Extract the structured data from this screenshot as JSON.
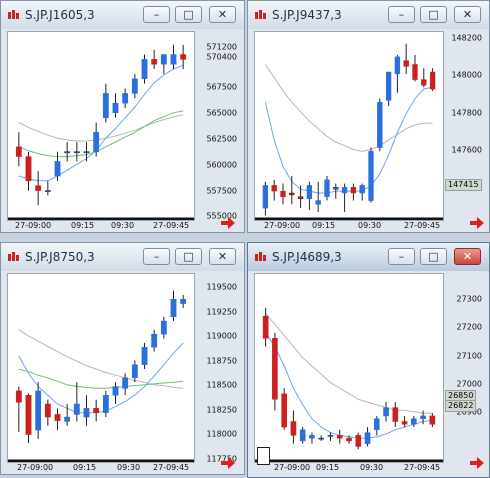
{
  "colors": {
    "up": "#2a6fdd",
    "down": "#cc1f1f",
    "ma_fast": "#6aa8e8",
    "ma_slow": "#6fbf6f",
    "ma_gray": "#b7b7b7",
    "arrow": "#e02020"
  },
  "windows": [
    {
      "title": "S.JP.J1605,3",
      "x_labels": [
        "27-09:00",
        "09:15",
        "09:30",
        "27-09:45"
      ],
      "y_labels": [
        "571200",
        "570400",
        "567500",
        "565000",
        "562500",
        "560000",
        "557500",
        "555000"
      ],
      "price_tag": "",
      "buttons": [
        "–",
        "□",
        "✕"
      ],
      "chart_data": {
        "type": "candlestick",
        "ylim": [
          554500,
          572200
        ],
        "ohlc": [
          [
            561000,
            562500,
            559000,
            560000
          ],
          [
            560000,
            560500,
            556500,
            557500
          ],
          [
            557000,
            558500,
            555000,
            556500
          ],
          [
            556500,
            557500,
            556000,
            556500
          ],
          [
            558000,
            560500,
            557500,
            559500
          ],
          [
            560500,
            561500,
            559500,
            560500
          ],
          [
            560500,
            561500,
            559500,
            560500
          ],
          [
            560500,
            561500,
            559500,
            560500
          ],
          [
            560500,
            563500,
            560000,
            562500
          ],
          [
            564000,
            567500,
            563500,
            566500
          ],
          [
            564500,
            566500,
            564000,
            565500
          ],
          [
            565500,
            567000,
            565000,
            566500
          ],
          [
            566500,
            568500,
            566000,
            568000
          ],
          [
            568000,
            570500,
            567500,
            570000
          ],
          [
            570000,
            571000,
            569000,
            569500
          ],
          [
            569500,
            570500,
            568500,
            570500
          ],
          [
            569500,
            571500,
            569000,
            570500
          ],
          [
            570500,
            571500,
            569000,
            570000
          ]
        ],
        "ma_fast": [
          558000,
          557700,
          557500,
          557500,
          558000,
          558600,
          559200,
          559800,
          560600,
          561900,
          562900,
          564000,
          565100,
          566400,
          567600,
          568400,
          569000,
          569400
        ],
        "ma_slow": [
          561000,
          560600,
          560300,
          560100,
          560000,
          560000,
          560100,
          560200,
          560500,
          561000,
          561500,
          562000,
          562500,
          563100,
          563700,
          564100,
          564500,
          564700
        ],
        "ma_gray": [
          563500,
          563000,
          562600,
          562200,
          561900,
          561700,
          561600,
          561600,
          561700,
          561900,
          562100,
          562400,
          562700,
          563100,
          563500,
          563800,
          564100,
          564300
        ]
      }
    },
    {
      "title": "S.JP.J9437,3",
      "x_labels": [
        "27-09:00",
        "09:15",
        "09:30",
        "27-09:45"
      ],
      "y_labels": [
        "148200",
        "148000",
        "147800",
        "147600",
        "147415"
      ],
      "price_tag": "147415",
      "buttons": [
        "–",
        "□",
        "✕"
      ],
      "chart_data": {
        "type": "candlestick",
        "ylim": [
          147330,
          148240
        ],
        "ohlc": [
          [
            147340,
            147480,
            147300,
            147460
          ],
          [
            147460,
            147490,
            147380,
            147430
          ],
          [
            147430,
            147470,
            147360,
            147400
          ],
          [
            147420,
            147510,
            147360,
            147410
          ],
          [
            147400,
            147460,
            147340,
            147390
          ],
          [
            147390,
            147480,
            147330,
            147460
          ],
          [
            147360,
            147480,
            147320,
            147380
          ],
          [
            147400,
            147510,
            147380,
            147490
          ],
          [
            147440,
            147470,
            147390,
            147450
          ],
          [
            147420,
            147470,
            147320,
            147450
          ],
          [
            147450,
            147470,
            147380,
            147420
          ],
          [
            147420,
            147470,
            147380,
            147460
          ],
          [
            147380,
            147660,
            147370,
            147640
          ],
          [
            147660,
            147920,
            147640,
            147900
          ],
          [
            147910,
            148060,
            147880,
            148060
          ],
          [
            148050,
            148150,
            147950,
            148140
          ],
          [
            148120,
            148210,
            148050,
            148090
          ],
          [
            148100,
            148150,
            148010,
            148020
          ],
          [
            148020,
            148080,
            147980,
            147990
          ],
          [
            148060,
            148080,
            147960,
            147970
          ]
        ],
        "ma_fast": [
          147900,
          147700,
          147560,
          147480,
          147440,
          147430,
          147420,
          147420,
          147430,
          147430,
          147430,
          147430,
          147460,
          147520,
          147620,
          147740,
          147840,
          147920,
          147970,
          147980
        ],
        "ma_gray": [
          148100,
          148030,
          147960,
          147900,
          147850,
          147800,
          147760,
          147720,
          147690,
          147670,
          147650,
          147640,
          147650,
          147670,
          147700,
          147730,
          147760,
          147780,
          147790,
          147790
        ]
      }
    },
    {
      "title": "S.JP.J8750,3",
      "x_labels": [
        "27-09:00",
        "09:15",
        "09:30",
        "27-09:45"
      ],
      "y_labels": [
        "119500",
        "119250",
        "119000",
        "118750",
        "118500",
        "118250",
        "118000",
        "117750"
      ],
      "price_tag": "",
      "buttons": [
        "–",
        "□",
        "✕"
      ],
      "chart_data": {
        "type": "candlestick",
        "ylim": [
          117650,
          119620
        ],
        "ohlc": [
          [
            118350,
            118400,
            117880,
            118220
          ],
          [
            118300,
            118320,
            117750,
            117850
          ],
          [
            117900,
            118450,
            117800,
            118350
          ],
          [
            118200,
            118250,
            117950,
            118050
          ],
          [
            118080,
            118150,
            117900,
            118010
          ],
          [
            118000,
            118200,
            117950,
            118050
          ],
          [
            118080,
            118450,
            118000,
            118200
          ],
          [
            118050,
            118300,
            117950,
            118150
          ],
          [
            118150,
            118250,
            118000,
            118100
          ],
          [
            118100,
            118350,
            118050,
            118300
          ],
          [
            118300,
            118450,
            118200,
            118400
          ],
          [
            118380,
            118550,
            118300,
            118500
          ],
          [
            118500,
            118700,
            118450,
            118650
          ],
          [
            118650,
            118900,
            118600,
            118850
          ],
          [
            118850,
            119050,
            118800,
            119000
          ],
          [
            119000,
            119200,
            118950,
            119150
          ],
          [
            119200,
            119500,
            119150,
            119400
          ],
          [
            119350,
            119450,
            119300,
            119400
          ]
        ],
        "ma_fast": [
          118750,
          118550,
          118400,
          118300,
          118200,
          118150,
          118100,
          118100,
          118100,
          118120,
          118170,
          118230,
          118300,
          118400,
          118520,
          118650,
          118780,
          118900
        ],
        "ma_slow": [
          118600,
          118570,
          118530,
          118500,
          118460,
          118420,
          118400,
          118390,
          118380,
          118380,
          118390,
          118400,
          118410,
          118420,
          118430,
          118440,
          118450,
          118460
        ],
        "ma_gray": [
          119050,
          118980,
          118920,
          118860,
          118800,
          118740,
          118690,
          118640,
          118600,
          118560,
          118530,
          118500,
          118470,
          118450,
          118420,
          118410,
          118390,
          118380
        ]
      }
    },
    {
      "title": "S.JP.J4689,3",
      "x_labels": [
        "27-09:00",
        "09:15",
        "09:30",
        "27-09:45"
      ],
      "y_labels": [
        "27300",
        "27200",
        "27100",
        "27000",
        "26900",
        "26850",
        "26822"
      ],
      "price_tag": "26850",
      "price_tag2": "26822",
      "buttons": [
        "–",
        "□",
        "✕"
      ],
      "chart_data": {
        "type": "candlestick",
        "ylim": [
          26770,
          27390
        ],
        "ohlc": [
          [
            27260,
            27290,
            27150,
            27180
          ],
          [
            27180,
            27200,
            26920,
            26960
          ],
          [
            26980,
            27000,
            26850,
            26860
          ],
          [
            26880,
            26920,
            26800,
            26830
          ],
          [
            26810,
            26860,
            26800,
            26850
          ],
          [
            26820,
            26840,
            26800,
            26830
          ],
          [
            26820,
            26830,
            26810,
            26820
          ],
          [
            26830,
            26840,
            26810,
            26830
          ],
          [
            26830,
            26850,
            26800,
            26820
          ],
          [
            26820,
            26830,
            26800,
            26810
          ],
          [
            26830,
            26840,
            26780,
            26790
          ],
          [
            26800,
            26860,
            26790,
            26840
          ],
          [
            26850,
            26900,
            26830,
            26890
          ],
          [
            26900,
            26950,
            26880,
            26930
          ],
          [
            26930,
            26950,
            26860,
            26880
          ],
          [
            26880,
            26900,
            26860,
            26870
          ],
          [
            26870,
            26900,
            26860,
            26890
          ],
          [
            26890,
            26920,
            26870,
            26900
          ],
          [
            26900,
            26910,
            26860,
            26870
          ]
        ],
        "ma_fast": [
          27200,
          27150,
          27080,
          27000,
          26940,
          26890,
          26860,
          26840,
          26830,
          26825,
          26820,
          26820,
          26825,
          26835,
          26850,
          26860,
          26870,
          26880,
          26885
        ],
        "ma_gray": [
          27270,
          27230,
          27190,
          27150,
          27110,
          27080,
          27050,
          27020,
          27000,
          26980,
          26960,
          26950,
          26940,
          26930,
          26920,
          26920,
          26915,
          26910,
          26910
        ]
      }
    }
  ]
}
